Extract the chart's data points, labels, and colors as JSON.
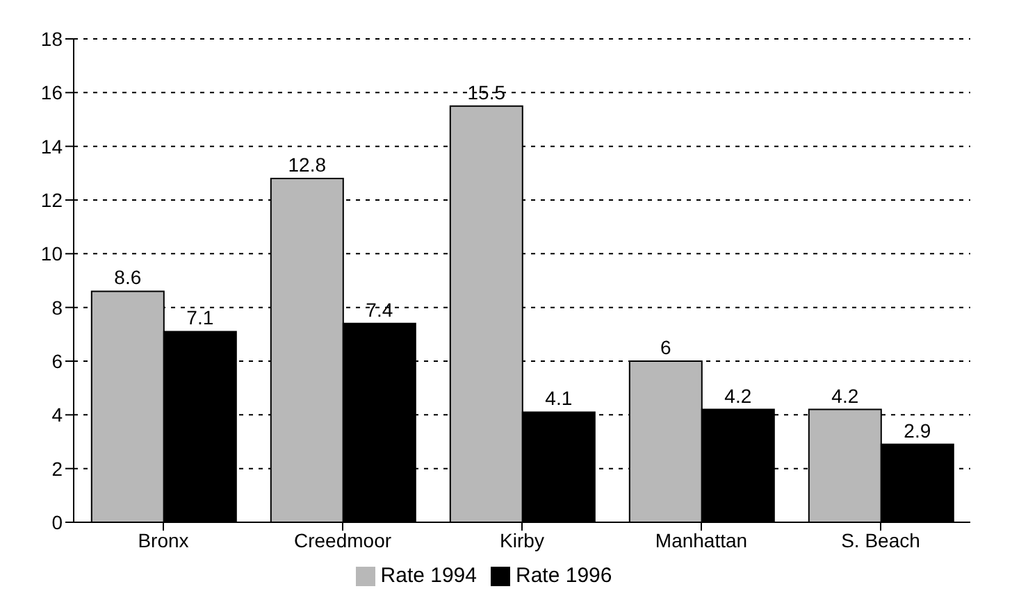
{
  "chart_data": {
    "type": "bar",
    "categories": [
      "Bronx",
      "Creedmoor",
      "Kirby",
      "Manhattan",
      "S. Beach"
    ],
    "series": [
      {
        "name": "Rate 1994",
        "color": "#b8b8b8",
        "values": [
          8.6,
          12.8,
          15.5,
          6,
          4.2
        ]
      },
      {
        "name": "Rate 1996",
        "color": "#000000",
        "values": [
          7.1,
          7.4,
          4.1,
          4.2,
          2.9
        ]
      }
    ],
    "ylim": [
      0,
      18
    ],
    "yticks": [
      0,
      2,
      4,
      6,
      8,
      10,
      12,
      14,
      16,
      18
    ],
    "grid": "y",
    "legend": "bottom",
    "data_labels": true
  }
}
